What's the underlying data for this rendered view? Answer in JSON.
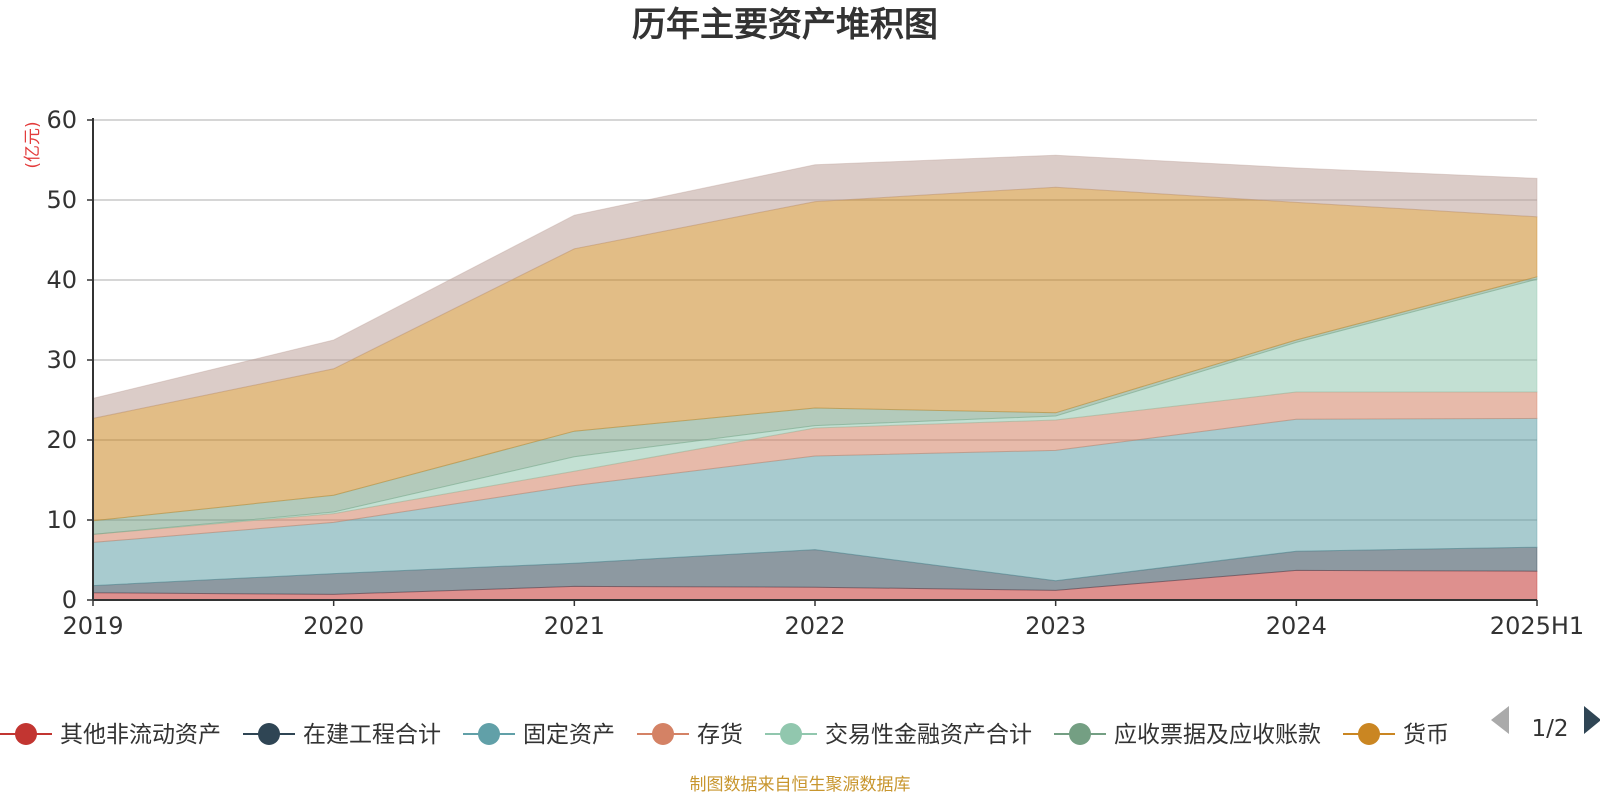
{
  "chart_data": {
    "type": "area",
    "title": "历年主要资产堆积图",
    "unit_label": "(亿元)",
    "x": [
      "2019",
      "2020",
      "2021",
      "2022",
      "2023",
      "2024",
      "2025H1"
    ],
    "ylim": [
      0,
      60
    ],
    "yticks": [
      0,
      10,
      20,
      30,
      40,
      50,
      60
    ],
    "grid": true,
    "stacked": true,
    "legend_position": "bottom",
    "legend_page": "1/2",
    "series": [
      {
        "name": "其他非流动资产",
        "color": "#c23531",
        "values": [
          0.9,
          0.7,
          1.7,
          1.6,
          1.2,
          3.7,
          3.6
        ]
      },
      {
        "name": "在建工程合计",
        "color": "#2f4554",
        "values": [
          0.9,
          2.6,
          2.9,
          4.7,
          1.2,
          2.4,
          3.0
        ]
      },
      {
        "name": "固定资产",
        "color": "#61a0a8",
        "values": [
          5.4,
          6.4,
          9.7,
          11.7,
          16.3,
          16.5,
          16.1
        ]
      },
      {
        "name": "存货",
        "color": "#d48265",
        "values": [
          1.0,
          1.1,
          1.8,
          3.5,
          3.8,
          3.4,
          3.3
        ]
      },
      {
        "name": "交易性金融资产合计",
        "color": "#91c7ae",
        "values": [
          0.0,
          0.2,
          1.8,
          0.3,
          0.5,
          6.2,
          14.1
        ]
      },
      {
        "name": "应收票据及应收账款",
        "color": "#749f83",
        "values": [
          1.7,
          2.1,
          3.2,
          2.2,
          0.4,
          0.3,
          0.3
        ]
      },
      {
        "name": "货币",
        "color": "#ca8622",
        "values": [
          12.8,
          15.8,
          22.8,
          25.8,
          28.2,
          17.2,
          7.5
        ]
      },
      {
        "name": "",
        "color": "#bda29a",
        "values": [
          2.5,
          3.6,
          4.2,
          4.6,
          4.0,
          4.3,
          4.8
        ]
      }
    ]
  },
  "footer": {
    "source": "制图数据来自恒生聚源数据库"
  }
}
